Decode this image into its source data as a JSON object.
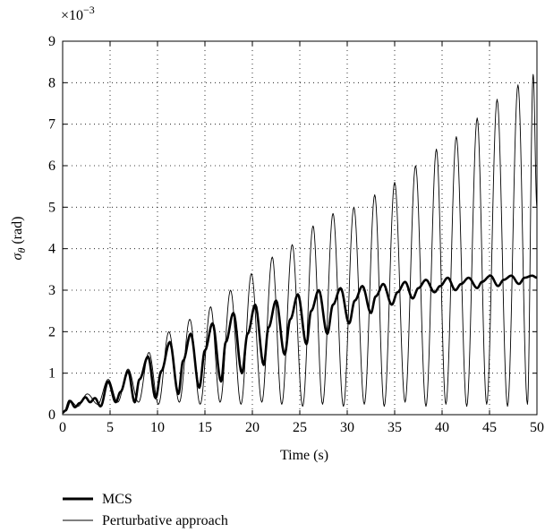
{
  "chart_data": {
    "type": "line",
    "xlabel": "Time (s)",
    "ylabel_main": "σ",
    "ylabel_sub": "θ",
    "ylabel_unit": " (rad)",
    "y_multiplier_base": "×10",
    "y_multiplier_exp": "−3",
    "xlim": [
      0,
      50
    ],
    "ylim": [
      0,
      9
    ],
    "y_scale_note": "values in units of 1e-3 rad",
    "x_ticks": [
      0,
      5,
      10,
      15,
      20,
      25,
      30,
      35,
      40,
      45,
      50
    ],
    "y_ticks": [
      0,
      1,
      2,
      3,
      4,
      5,
      6,
      7,
      8,
      9
    ],
    "grid": true,
    "legend_position": "bottom-left",
    "series": [
      {
        "name": "MCS",
        "style": "thick",
        "x": [
          0,
          0.3,
          0.8,
          1.3,
          1.8,
          2.4,
          2.9,
          3.4,
          4.0,
          4.8,
          5.6,
          6.1,
          6.9,
          7.6,
          8.1,
          9.0,
          9.8,
          10.4,
          11.3,
          12.2,
          12.7,
          13.5,
          14.4,
          15.0,
          15.8,
          16.7,
          17.2,
          18.0,
          18.9,
          19.5,
          20.3,
          21.2,
          21.7,
          22.5,
          23.4,
          24.0,
          24.8,
          25.7,
          26.2,
          27.0,
          27.9,
          28.5,
          29.3,
          30.2,
          30.8,
          31.6,
          32.5,
          33.0,
          33.8,
          34.7,
          35.3,
          36.1,
          36.9,
          37.5,
          38.3,
          39.2,
          39.8,
          40.6,
          41.4,
          42.0,
          42.8,
          43.7,
          44.2,
          45.1,
          45.9,
          46.5,
          47.3,
          48.1,
          48.7,
          49.5,
          50
        ],
        "y": [
          0.05,
          0.1,
          0.33,
          0.18,
          0.28,
          0.42,
          0.3,
          0.4,
          0.2,
          0.8,
          0.3,
          0.55,
          1.05,
          0.3,
          0.85,
          1.4,
          0.4,
          1.05,
          1.75,
          0.5,
          1.3,
          1.95,
          0.65,
          1.55,
          2.2,
          0.8,
          1.75,
          2.45,
          1.0,
          1.95,
          2.65,
          1.2,
          2.1,
          2.75,
          1.45,
          2.3,
          2.9,
          1.7,
          2.5,
          3.0,
          1.95,
          2.65,
          3.05,
          2.2,
          2.75,
          3.1,
          2.45,
          2.85,
          3.15,
          2.65,
          2.95,
          3.2,
          2.8,
          3.05,
          3.25,
          2.95,
          3.1,
          3.3,
          3.0,
          3.15,
          3.3,
          3.05,
          3.2,
          3.35,
          3.1,
          3.25,
          3.35,
          3.15,
          3.3,
          3.35,
          3.3
        ]
      },
      {
        "name": "Perturbative approach",
        "style": "thin",
        "peaks_x": [
          0.7,
          2.6,
          4.8,
          6.9,
          9.1,
          11.2,
          13.4,
          15.6,
          17.7,
          19.9,
          22.1,
          24.2,
          26.4,
          28.5,
          30.7,
          32.9,
          35.0,
          37.2,
          39.4,
          41.5,
          43.7,
          45.8,
          48.0,
          49.6
        ],
        "peaks_y": [
          0.35,
          0.5,
          0.85,
          1.1,
          1.5,
          2.0,
          2.3,
          2.6,
          3.0,
          3.4,
          3.8,
          4.1,
          4.55,
          4.85,
          5.0,
          5.3,
          5.6,
          6.0,
          6.4,
          6.7,
          7.15,
          7.6,
          7.95,
          8.2
        ],
        "troughs_x": [
          0.1,
          1.6,
          3.7,
          5.8,
          8.0,
          10.1,
          12.3,
          14.5,
          16.6,
          18.8,
          21.0,
          23.1,
          25.3,
          27.4,
          29.6,
          31.8,
          33.9,
          36.1,
          38.3,
          40.4,
          42.6,
          44.7,
          46.9,
          49.0
        ],
        "troughs_y": [
          0.05,
          0.2,
          0.25,
          0.3,
          0.3,
          0.25,
          0.3,
          0.25,
          0.3,
          0.25,
          0.3,
          0.25,
          0.2,
          0.25,
          0.2,
          0.25,
          0.2,
          0.3,
          0.2,
          0.25,
          0.2,
          0.25,
          0.2,
          0.25
        ],
        "end_value": 5.0
      }
    ],
    "legend": {
      "entries": [
        "MCS",
        "Perturbative approach"
      ]
    }
  }
}
